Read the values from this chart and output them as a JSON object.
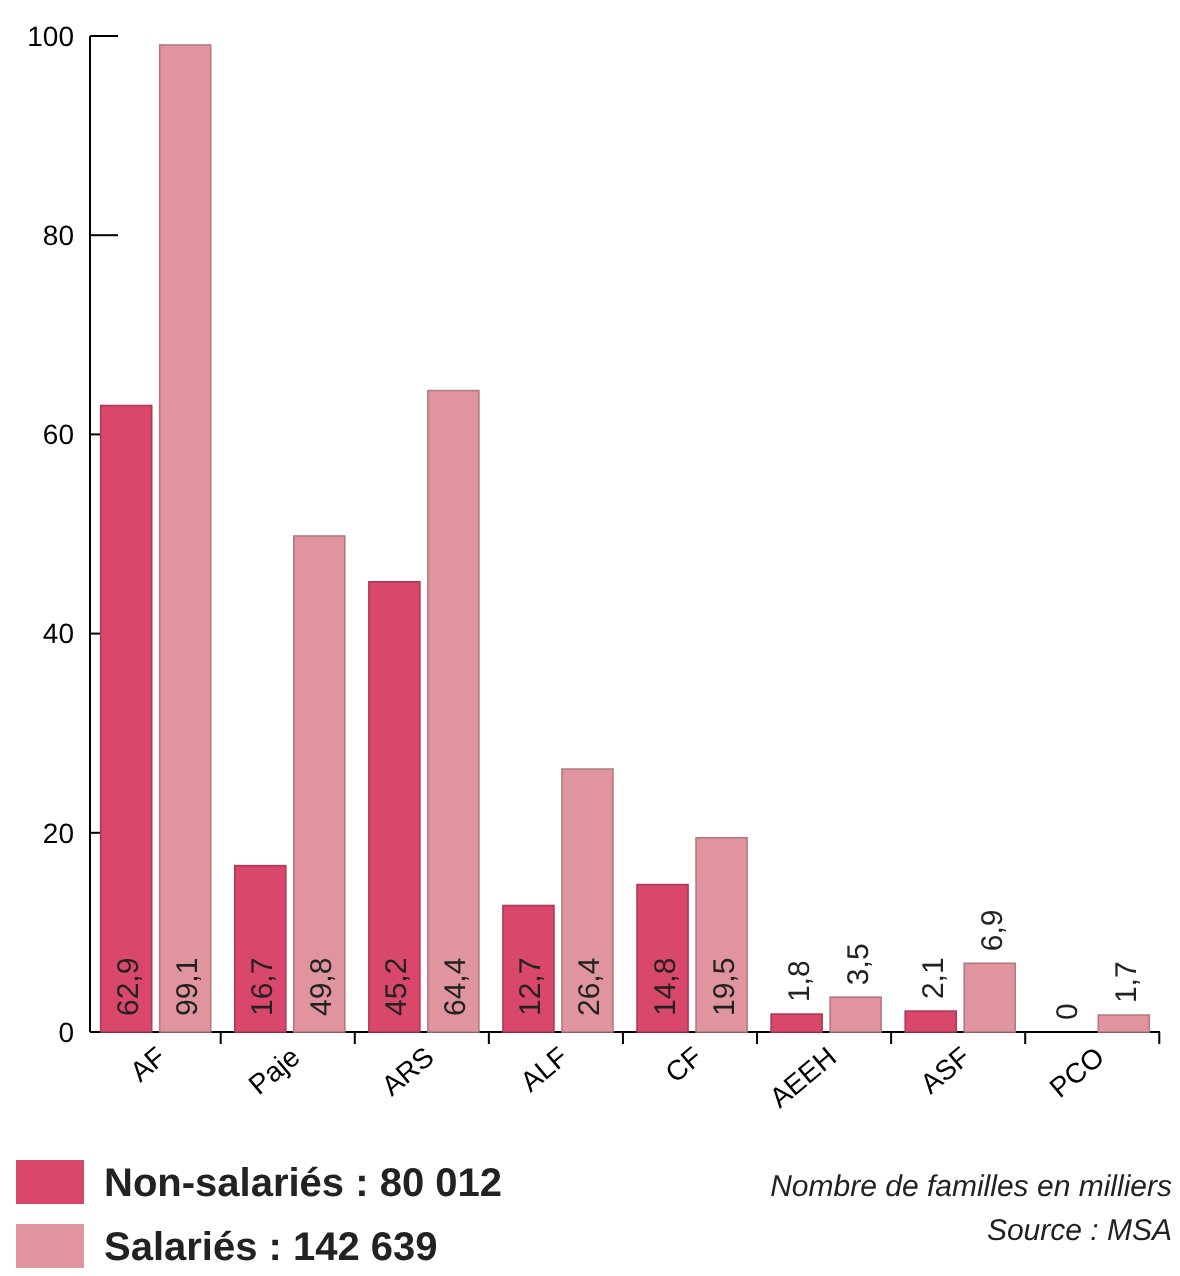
{
  "chart_data": {
    "type": "bar",
    "categories": [
      "AF",
      "Paje",
      "ARS",
      "ALF",
      "CF",
      "AEEH",
      "ASF",
      "PCO"
    ],
    "series": [
      {
        "name": "Non-salariés : 80 012",
        "color": "#d9476b",
        "values": [
          62.9,
          16.7,
          45.2,
          12.7,
          14.8,
          1.8,
          2.1,
          0
        ],
        "value_labels": [
          "62,9",
          "16,7",
          "45,2",
          "12,7",
          "14,8",
          "1,8",
          "2,1",
          "0"
        ]
      },
      {
        "name": "Salariés : 142 639",
        "color": "#e0959e",
        "values": [
          99.1,
          49.8,
          64.4,
          26.4,
          19.5,
          3.5,
          6.9,
          1.7
        ],
        "value_labels": [
          "99,1",
          "49,8",
          "64,4",
          "26,4",
          "19,5",
          "3,5",
          "6,9",
          "1,7"
        ]
      }
    ],
    "ylim": [
      0,
      100
    ],
    "yticks": [
      0,
      20,
      40,
      60,
      80,
      100
    ],
    "grid": false,
    "legend": "bottom left",
    "annotations": [
      "Nombre de familles en milliers",
      "Source : MSA"
    ]
  }
}
